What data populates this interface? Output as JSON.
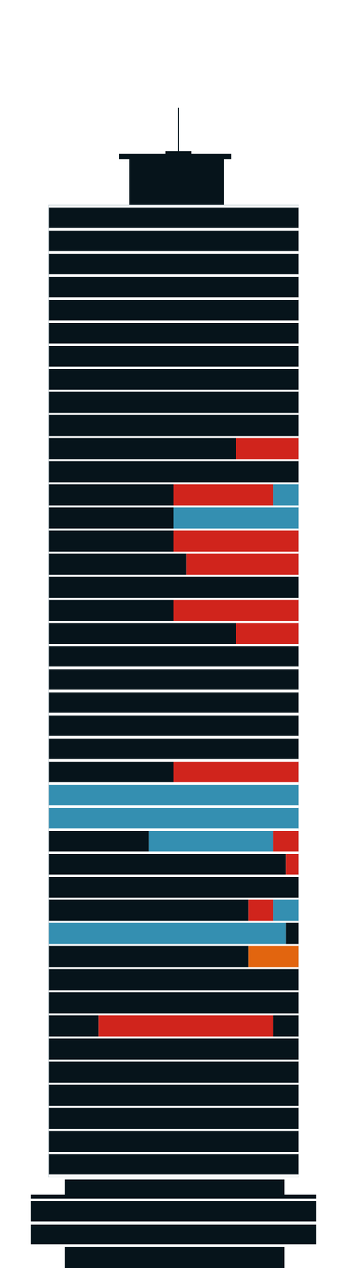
{
  "chart_data": {
    "type": "bar",
    "orientation": "horizontal",
    "stacked": true,
    "tick_labels": false,
    "xlim": [
      0,
      100
    ],
    "categories": [
      null,
      null,
      null,
      null,
      null,
      null,
      null,
      null,
      null,
      null,
      null,
      null,
      null,
      null,
      null,
      null,
      null,
      null,
      null,
      null,
      null,
      null,
      null,
      null,
      null,
      null,
      null,
      null,
      null,
      null,
      null,
      null,
      null,
      null,
      null,
      null,
      null,
      null,
      null,
      null,
      null,
      null
    ],
    "floors": [
      {
        "values": [
          100
        ],
        "colors": [
          "#06141b"
        ]
      },
      {
        "values": [
          100
        ],
        "colors": [
          "#06141b"
        ]
      },
      {
        "values": [
          100
        ],
        "colors": [
          "#06141b"
        ]
      },
      {
        "values": [
          100
        ],
        "colors": [
          "#06141b"
        ]
      },
      {
        "values": [
          100
        ],
        "colors": [
          "#06141b"
        ]
      },
      {
        "values": [
          100
        ],
        "colors": [
          "#06141b"
        ]
      },
      {
        "values": [
          100
        ],
        "colors": [
          "#06141b"
        ]
      },
      {
        "values": [
          100
        ],
        "colors": [
          "#06141b"
        ]
      },
      {
        "values": [
          100
        ],
        "colors": [
          "#06141b"
        ]
      },
      {
        "values": [
          100
        ],
        "colors": [
          "#06141b"
        ]
      },
      {
        "values": [
          75,
          25
        ],
        "colors": [
          "#06141b",
          "#d0241c"
        ]
      },
      {
        "values": [
          100
        ],
        "colors": [
          "#06141b"
        ]
      },
      {
        "values": [
          50,
          40,
          10
        ],
        "colors": [
          "#06141b",
          "#d0241c",
          "#348fb1"
        ]
      },
      {
        "values": [
          50,
          50
        ],
        "colors": [
          "#06141b",
          "#348fb1"
        ]
      },
      {
        "values": [
          50,
          50
        ],
        "colors": [
          "#06141b",
          "#d0241c"
        ]
      },
      {
        "values": [
          55,
          45
        ],
        "colors": [
          "#06141b",
          "#d0241c"
        ]
      },
      {
        "values": [
          100
        ],
        "colors": [
          "#06141b"
        ]
      },
      {
        "values": [
          50,
          50
        ],
        "colors": [
          "#06141b",
          "#d0241c"
        ]
      },
      {
        "values": [
          75,
          25
        ],
        "colors": [
          "#06141b",
          "#d0241c"
        ]
      },
      {
        "values": [
          100
        ],
        "colors": [
          "#06141b"
        ]
      },
      {
        "values": [
          100
        ],
        "colors": [
          "#06141b"
        ]
      },
      {
        "values": [
          100
        ],
        "colors": [
          "#06141b"
        ]
      },
      {
        "values": [
          100
        ],
        "colors": [
          "#06141b"
        ]
      },
      {
        "values": [
          100
        ],
        "colors": [
          "#06141b"
        ]
      },
      {
        "values": [
          50,
          50
        ],
        "colors": [
          "#06141b",
          "#d0241c"
        ]
      },
      {
        "values": [
          100
        ],
        "colors": [
          "#348fb1"
        ]
      },
      {
        "values": [
          100
        ],
        "colors": [
          "#348fb1"
        ]
      },
      {
        "values": [
          40,
          50,
          10
        ],
        "colors": [
          "#06141b",
          "#348fb1",
          "#d0241c"
        ]
      },
      {
        "values": [
          95,
          5
        ],
        "colors": [
          "#06141b",
          "#d0241c"
        ]
      },
      {
        "values": [
          100
        ],
        "colors": [
          "#06141b"
        ]
      },
      {
        "values": [
          80,
          10,
          10
        ],
        "colors": [
          "#06141b",
          "#d0241c",
          "#348fb1"
        ]
      },
      {
        "values": [
          95,
          5
        ],
        "colors": [
          "#348fb1",
          "#06141b"
        ]
      },
      {
        "values": [
          80,
          20
        ],
        "colors": [
          "#06141b",
          "#e2650f"
        ]
      },
      {
        "values": [
          100
        ],
        "colors": [
          "#06141b"
        ]
      },
      {
        "values": [
          100
        ],
        "colors": [
          "#06141b"
        ]
      },
      {
        "values": [
          20,
          70,
          10
        ],
        "colors": [
          "#06141b",
          "#d0241c",
          "#06141b"
        ]
      },
      {
        "values": [
          100
        ],
        "colors": [
          "#06141b"
        ]
      },
      {
        "values": [
          100
        ],
        "colors": [
          "#06141b"
        ]
      },
      {
        "values": [
          100
        ],
        "colors": [
          "#06141b"
        ]
      },
      {
        "values": [
          100
        ],
        "colors": [
          "#06141b"
        ]
      },
      {
        "values": [
          100
        ],
        "colors": [
          "#06141b"
        ]
      },
      {
        "values": [
          100
        ],
        "colors": [
          "#06141b"
        ]
      }
    ]
  }
}
